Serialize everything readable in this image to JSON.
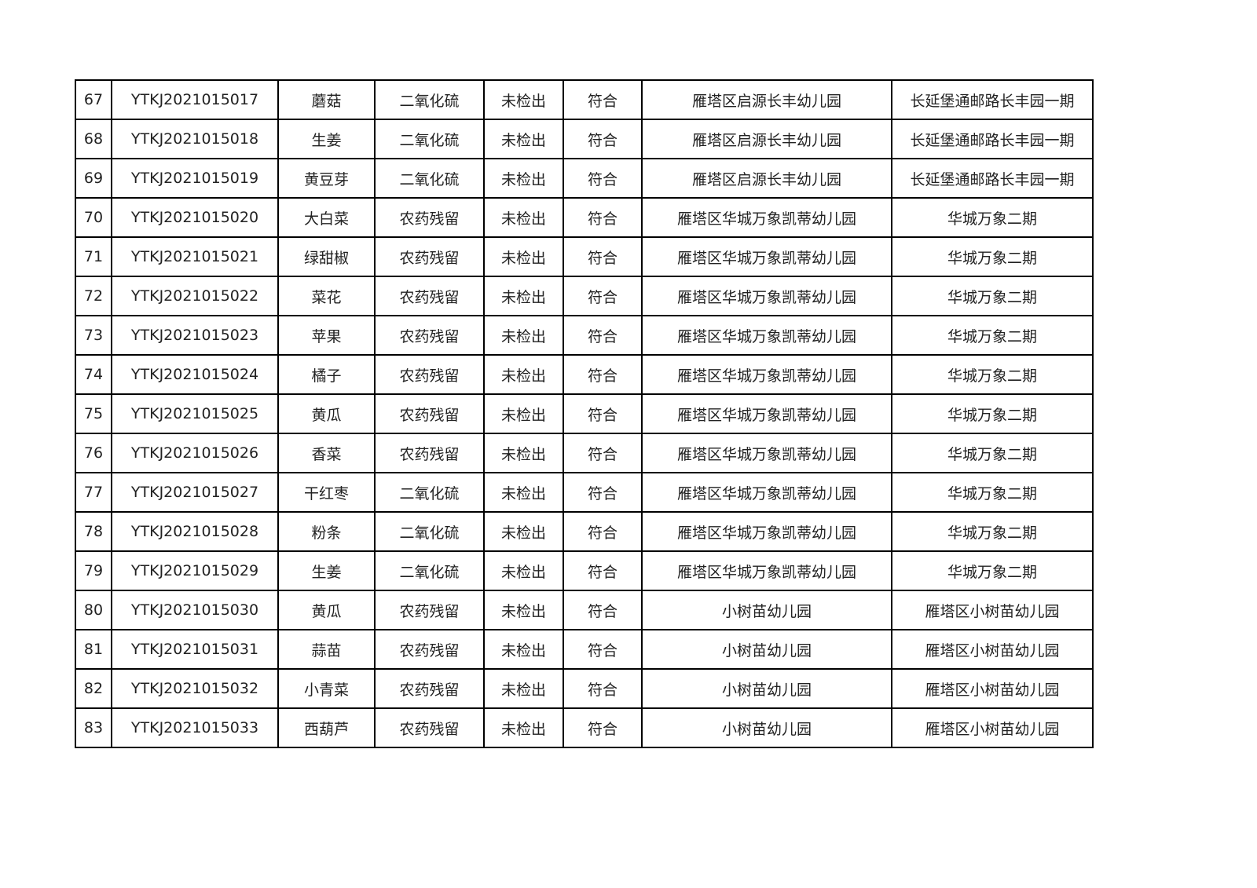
{
  "rows": [
    [
      "67",
      "YTKJ2021015017",
      "蘑菇",
      "二氧化硫",
      "未检出",
      "符合",
      "雁塔区启源长丰幼儿园",
      "长延堡通邮路长丰园一期"
    ],
    [
      "68",
      "YTKJ2021015018",
      "生姜",
      "二氧化硫",
      "未检出",
      "符合",
      "雁塔区启源长丰幼儿园",
      "长延堡通邮路长丰园一期"
    ],
    [
      "69",
      "YTKJ2021015019",
      "黄豆芽",
      "二氧化硫",
      "未检出",
      "符合",
      "雁塔区启源长丰幼儿园",
      "长延堡通邮路长丰园一期"
    ],
    [
      "70",
      "YTKJ2021015020",
      "大白菜",
      "农药残留",
      "未检出",
      "符合",
      "雁塔区华城万象凯蒂幼儿园",
      "华城万象二期"
    ],
    [
      "71",
      "YTKJ2021015021",
      "绿甜椒",
      "农药残留",
      "未检出",
      "符合",
      "雁塔区华城万象凯蒂幼儿园",
      "华城万象二期"
    ],
    [
      "72",
      "YTKJ2021015022",
      "菜花",
      "农药残留",
      "未检出",
      "符合",
      "雁塔区华城万象凯蒂幼儿园",
      "华城万象二期"
    ],
    [
      "73",
      "YTKJ2021015023",
      "苹果",
      "农药残留",
      "未检出",
      "符合",
      "雁塔区华城万象凯蒂幼儿园",
      "华城万象二期"
    ],
    [
      "74",
      "YTKJ2021015024",
      "橘子",
      "农药残留",
      "未检出",
      "符合",
      "雁塔区华城万象凯蒂幼儿园",
      "华城万象二期"
    ],
    [
      "75",
      "YTKJ2021015025",
      "黄瓜",
      "农药残留",
      "未检出",
      "符合",
      "雁塔区华城万象凯蒂幼儿园",
      "华城万象二期"
    ],
    [
      "76",
      "YTKJ2021015026",
      "香菜",
      "农药残留",
      "未检出",
      "符合",
      "雁塔区华城万象凯蒂幼儿园",
      "华城万象二期"
    ],
    [
      "77",
      "YTKJ2021015027",
      "干红枣",
      "二氧化硫",
      "未检出",
      "符合",
      "雁塔区华城万象凯蒂幼儿园",
      "华城万象二期"
    ],
    [
      "78",
      "YTKJ2021015028",
      "粉条",
      "二氧化硫",
      "未检出",
      "符合",
      "雁塔区华城万象凯蒂幼儿园",
      "华城万象二期"
    ],
    [
      "79",
      "YTKJ2021015029",
      "生姜",
      "二氧化硫",
      "未检出",
      "符合",
      "雁塔区华城万象凯蒂幼儿园",
      "华城万象二期"
    ],
    [
      "80",
      "YTKJ2021015030",
      "黄瓜",
      "农药残留",
      "未检出",
      "符合",
      "小树苗幼儿园",
      "雁塔区小树苗幼儿园"
    ],
    [
      "81",
      "YTKJ2021015031",
      "蒜苗",
      "农药残留",
      "未检出",
      "符合",
      "小树苗幼儿园",
      "雁塔区小树苗幼儿园"
    ],
    [
      "82",
      "YTKJ2021015032",
      "小青菜",
      "农药残留",
      "未检出",
      "符合",
      "小树苗幼儿园",
      "雁塔区小树苗幼儿园"
    ],
    [
      "83",
      "YTKJ2021015033",
      "西葫芦",
      "农药残留",
      "未检出",
      "符合",
      "小树苗幼儿园",
      "雁塔区小树苗幼儿园"
    ]
  ]
}
